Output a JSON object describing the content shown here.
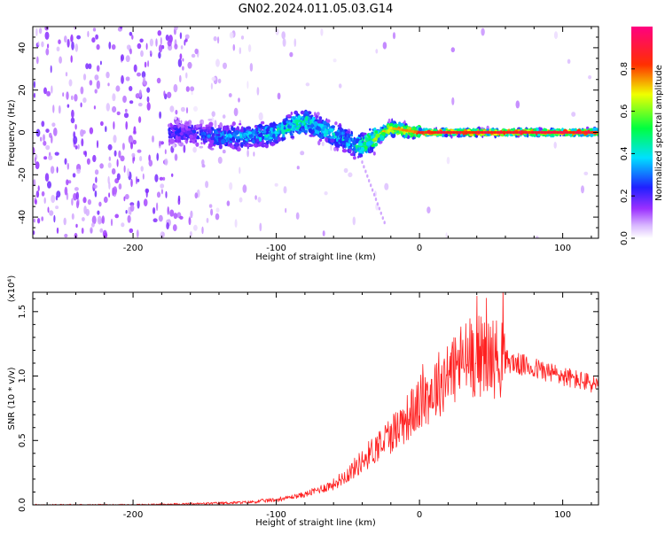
{
  "figure_title": "GN02.2024.011.05.03.G14",
  "chart_data": [
    {
      "type": "heatmap",
      "xlabel": "Height of straight line (km)",
      "ylabel": "Frequency (Hz)",
      "xlim": [
        -270,
        125
      ],
      "ylim": [
        -50,
        50
      ],
      "x_ticks": [
        -200,
        -100,
        0,
        100
      ],
      "y_ticks": [
        -40,
        -20,
        0,
        20,
        40
      ],
      "colorbar": {
        "label": "Normalized spectral amplitude",
        "range": [
          0,
          1
        ],
        "ticks": [
          0.0,
          0.2,
          0.4,
          0.6,
          0.8
        ],
        "tick_labels": [
          "0.0",
          "0.2",
          "0.4",
          "0.6",
          "0.8"
        ],
        "colors": [
          "#ffffff",
          "#9b30ff",
          "#0000ff",
          "#00ffff",
          "#00ff00",
          "#ffff00",
          "#ff0000",
          "#ff0080"
        ]
      },
      "ridge": {
        "description_points_x": [
          -160,
          -140,
          -120,
          -100,
          -90,
          -80,
          -70,
          -60,
          -50,
          -45,
          -40,
          -30,
          -20,
          -10,
          0,
          20,
          60,
          100,
          125
        ],
        "frequency_y": [
          0,
          -2,
          -2,
          0,
          3,
          5,
          2,
          -1,
          -4,
          -6,
          -6,
          -2,
          2,
          1,
          0,
          0,
          0,
          0,
          0
        ],
        "peak_amplitude": [
          0.25,
          0.35,
          0.4,
          0.45,
          0.5,
          0.5,
          0.45,
          0.45,
          0.4,
          0.5,
          0.55,
          0.7,
          0.75,
          0.8,
          0.85,
          0.9,
          0.9,
          0.9,
          0.9
        ]
      }
    },
    {
      "type": "line",
      "xlabel": "Height of straight line (km)",
      "ylabel": "SNR (10 * v/v)",
      "y_multiplier_label": "(x10⁴)",
      "xlim": [
        -270,
        125
      ],
      "ylim": [
        0,
        1.65
      ],
      "x_ticks": [
        -200,
        -100,
        0,
        100
      ],
      "y_ticks": [
        0.0,
        0.5,
        1.0,
        1.5
      ],
      "y_tick_labels": [
        "0.0",
        "0.5",
        "1.0",
        "1.5"
      ],
      "series": [
        {
          "color": "#ff2020",
          "envelope": {
            "x": [
              -270,
              -200,
              -150,
              -120,
              -100,
              -80,
              -60,
              -50,
              -40,
              -30,
              -20,
              -10,
              0,
              10,
              20,
              30,
              40,
              50,
              60,
              70,
              80,
              90,
              100,
              110,
              125
            ],
            "y": [
              0.0,
              0.0,
              0.01,
              0.02,
              0.04,
              0.08,
              0.16,
              0.24,
              0.34,
              0.45,
              0.55,
              0.66,
              0.78,
              0.9,
              1.02,
              1.12,
              1.16,
              1.15,
              1.12,
              1.09,
              1.06,
              1.03,
              1.0,
              0.97,
              0.93
            ]
          },
          "max_peak": {
            "x": 40,
            "y": 1.62
          }
        }
      ]
    }
  ]
}
